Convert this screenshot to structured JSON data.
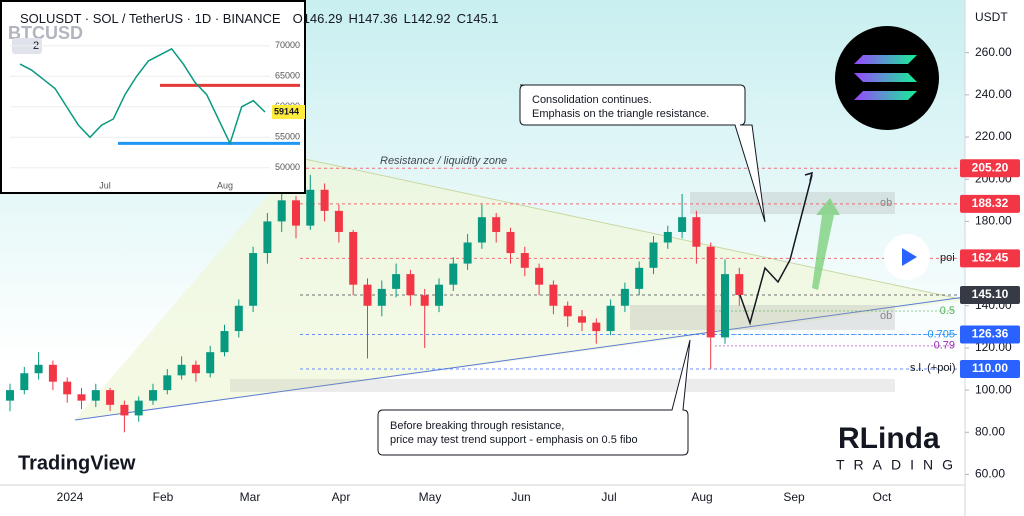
{
  "header": {
    "symbol": "SOLUSDT · SOL / TetherUS · 1D · BINANCE",
    "ohlc": [
      {
        "name": "O",
        "value": 146.29
      },
      {
        "name": "H",
        "value": 147.36
      },
      {
        "name": "L",
        "value": 142.92
      },
      {
        "name": "C",
        "value": 145.1
      }
    ]
  },
  "chart_data": {
    "type": "candlestick",
    "currency": "USDT",
    "x_labels": [
      "2024",
      "Feb",
      "Mar",
      "Apr",
      "May",
      "Jun",
      "Jul",
      "Aug",
      "Sep",
      "Oct"
    ],
    "up_color": "#089981",
    "down_color": "#f23645",
    "candles": [
      [
        95,
        103,
        90,
        100
      ],
      [
        100,
        111,
        98,
        108
      ],
      [
        108,
        118,
        105,
        112
      ],
      [
        112,
        114,
        100,
        104
      ],
      [
        104,
        106,
        94,
        98
      ],
      [
        98,
        101,
        91,
        95
      ],
      [
        95,
        103,
        92,
        100
      ],
      [
        100,
        101,
        90,
        93
      ],
      [
        93,
        95,
        80,
        88
      ],
      [
        88,
        97,
        85,
        95
      ],
      [
        95,
        103,
        93,
        100
      ],
      [
        100,
        110,
        98,
        107
      ],
      [
        107,
        116,
        105,
        112
      ],
      [
        112,
        114,
        104,
        108
      ],
      [
        108,
        121,
        106,
        118
      ],
      [
        118,
        131,
        116,
        128
      ],
      [
        128,
        143,
        125,
        140
      ],
      [
        140,
        168,
        137,
        165
      ],
      [
        165,
        184,
        160,
        180
      ],
      [
        180,
        205,
        175,
        190
      ],
      [
        190,
        192,
        172,
        178
      ],
      [
        178,
        202,
        176,
        195
      ],
      [
        195,
        198,
        180,
        185
      ],
      [
        185,
        188,
        170,
        175
      ],
      [
        175,
        176,
        145,
        150
      ],
      [
        150,
        153,
        115,
        140
      ],
      [
        140,
        152,
        135,
        148
      ],
      [
        148,
        160,
        144,
        155
      ],
      [
        155,
        157,
        140,
        145
      ],
      [
        145,
        148,
        120,
        140
      ],
      [
        140,
        153,
        137,
        150
      ],
      [
        150,
        163,
        147,
        160
      ],
      [
        160,
        174,
        157,
        170
      ],
      [
        170,
        188,
        167,
        182
      ],
      [
        182,
        184,
        170,
        175
      ],
      [
        175,
        177,
        160,
        165
      ],
      [
        165,
        168,
        154,
        158
      ],
      [
        158,
        160,
        145,
        150
      ],
      [
        150,
        152,
        136,
        140
      ],
      [
        140,
        142,
        130,
        135
      ],
      [
        135,
        138,
        128,
        132
      ],
      [
        132,
        134,
        122,
        128
      ],
      [
        128,
        143,
        126,
        140
      ],
      [
        140,
        151,
        137,
        148
      ],
      [
        148,
        161,
        145,
        158
      ],
      [
        158,
        173,
        155,
        170
      ],
      [
        170,
        178,
        167,
        175
      ],
      [
        175,
        193,
        172,
        182
      ],
      [
        182,
        185,
        160,
        168
      ],
      [
        168,
        170,
        110,
        125
      ],
      [
        125,
        162,
        122,
        155
      ],
      [
        155,
        158,
        140,
        145.1
      ]
    ],
    "ylim": [
      55,
      285
    ],
    "yticks": [
      {
        "value": 260,
        "label": "260.00"
      },
      {
        "value": 240,
        "label": "240.00"
      },
      {
        "value": 220,
        "label": "220.00"
      },
      {
        "value": 200,
        "label": "200.00"
      },
      {
        "value": 180,
        "label": "180.00"
      },
      {
        "value": 160,
        "label": "160.00"
      },
      {
        "value": 140,
        "label": "140.00"
      },
      {
        "value": 120,
        "label": "120.00"
      },
      {
        "value": 100,
        "label": "100.00"
      },
      {
        "value": 80,
        "label": "80.00"
      },
      {
        "value": 60,
        "label": "60.00"
      }
    ],
    "levels": [
      {
        "value": 205.2,
        "label": "205.20",
        "color": "#f23645"
      },
      {
        "value": 188.32,
        "label": "188.32",
        "color": "#f23645"
      },
      {
        "value": 162.45,
        "label": "162.45",
        "color": "#f23645"
      },
      {
        "value": 145.1,
        "label": "145.10",
        "color": "#363a45"
      },
      {
        "value": 126.36,
        "label": "126.36",
        "color": "#2962ff"
      },
      {
        "value": 110,
        "label": "110.00",
        "color": "#2962ff"
      }
    ],
    "fibo": [
      {
        "ratio": 0.5,
        "price": 137.5,
        "color": "#4caf50"
      },
      {
        "ratio": 0.705,
        "price": 126.4,
        "color": "#2196f3"
      },
      {
        "ratio": 0.79,
        "price": 121,
        "color": "#9c27b0"
      }
    ],
    "notes": {
      "zone": "Resistance / liquidity zone",
      "ob": "ob",
      "poi": "poi",
      "sl": "s.l. (+poi)"
    },
    "annotations": [
      {
        "lines": [
          "Consolidation continues.",
          "Emphasis on the triangle resistance."
        ]
      },
      {
        "lines": [
          "Before breaking through resistance,",
          "price may test trend support - emphasis on 0.5 fibo"
        ]
      }
    ],
    "logo": "TradingView",
    "brand": {
      "name": "RLinda",
      "sub": "TRADING"
    },
    "inset": {
      "symbol": "BTCUSD",
      "badge": "2",
      "x_labels": [
        "Jul",
        "Aug"
      ],
      "ylim": [
        48000,
        77500
      ],
      "yticks": [
        70000,
        65000,
        60000,
        55000,
        50000
      ],
      "values": [
        67000,
        66000,
        64500,
        63000,
        60000,
        57000,
        55000,
        57000,
        58000,
        62000,
        65000,
        67500,
        68500,
        69500,
        67000,
        64000,
        62000,
        58000,
        54000,
        60000,
        61000,
        59144
      ],
      "last": 59144,
      "levels": [
        63500,
        54000
      ]
    }
  }
}
